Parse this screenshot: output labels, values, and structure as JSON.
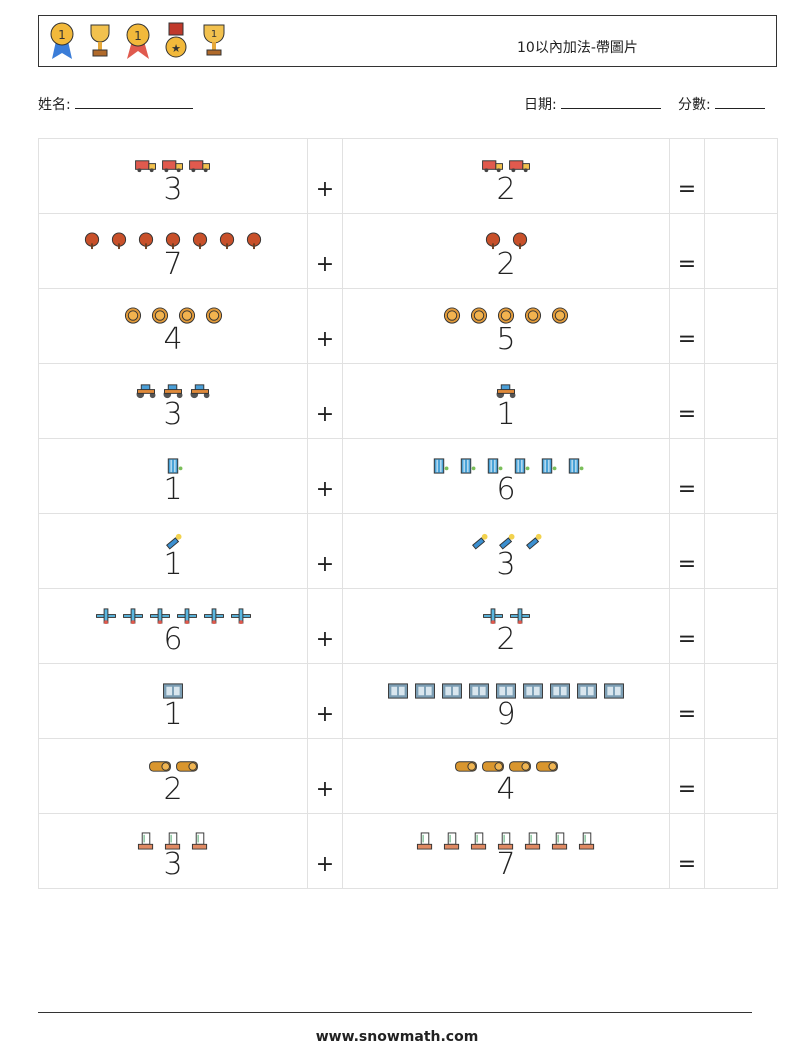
{
  "header": {
    "title": "10以內加法-帶圖片",
    "awards": [
      "medal-icon",
      "trophy-icon",
      "ribbon-medal-icon",
      "star-medal-icon",
      "cup-icon"
    ]
  },
  "fields": {
    "name_label": "姓名:",
    "date_label": "日期:",
    "score_label": "分數:"
  },
  "operators": {
    "plus": "+",
    "equals": "="
  },
  "rows": [
    {
      "a": "3",
      "b": "2",
      "icon": "truck",
      "color": "#e05a4e"
    },
    {
      "a": "7",
      "b": "2",
      "icon": "tree",
      "color": "#c8502a"
    },
    {
      "a": "4",
      "b": "5",
      "icon": "coin",
      "color": "#e39b3a"
    },
    {
      "a": "3",
      "b": "1",
      "icon": "tractor",
      "color": "#4a9fd8"
    },
    {
      "a": "1",
      "b": "6",
      "icon": "building",
      "color": "#4aa3d8"
    },
    {
      "a": "1",
      "b": "3",
      "icon": "flashlight",
      "color": "#3b8fd0"
    },
    {
      "a": "6",
      "b": "2",
      "icon": "plane",
      "color": "#5ab7e0"
    },
    {
      "a": "1",
      "b": "9",
      "icon": "window",
      "color": "#7c9eb4"
    },
    {
      "a": "2",
      "b": "4",
      "icon": "hay-bale",
      "color": "#d9962e"
    },
    {
      "a": "3",
      "b": "7",
      "icon": "hand-card",
      "color": "#e08a63"
    }
  ],
  "footer": {
    "site": "www.snowmath.com"
  }
}
